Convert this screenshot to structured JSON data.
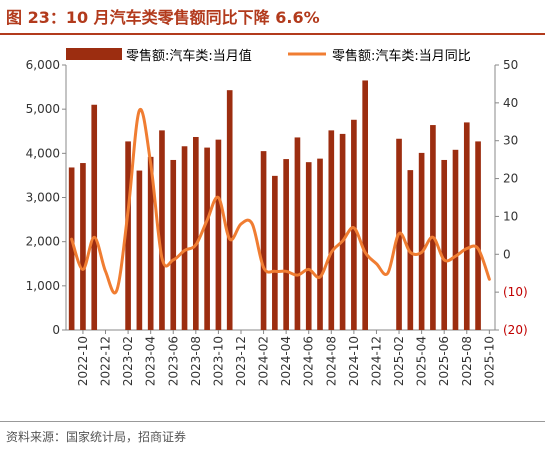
{
  "header": {
    "title": "图 23：10 月汽车类零售额同比下降 6.6%"
  },
  "footer": {
    "source": "资料来源：国家统计局，招商证券"
  },
  "colors": {
    "accent": "#b23a1c",
    "bar": "#9c2d10",
    "line": "#f07d32",
    "negative_label": "#c00000",
    "text": "#333333"
  },
  "chart_data": {
    "type": "bar",
    "categories": [
      "2022-09",
      "2022-10",
      "2022-11",
      "2022-12",
      "2023-01",
      "2023-02",
      "2023-03",
      "2023-04",
      "2023-05",
      "2023-06",
      "2023-07",
      "2023-08",
      "2023-09",
      "2023-10",
      "2023-11",
      "2023-12",
      "2024-01",
      "2024-02",
      "2024-03",
      "2024-04",
      "2024-05",
      "2024-06",
      "2024-07",
      "2024-08",
      "2024-09",
      "2024-10",
      "2024-11",
      "2024-12",
      "2025-01",
      "2025-02",
      "2025-03",
      "2025-04",
      "2025-05",
      "2025-06",
      "2025-07",
      "2025-08",
      "2025-09",
      "2025-10"
    ],
    "xtick_labels": [
      "2022-10",
      "2022-12",
      "2023-02",
      "2023-04",
      "2023-06",
      "2023-08",
      "2023-10",
      "2023-12",
      "2024-02",
      "2024-04",
      "2024-06",
      "2024-08",
      "2024-10",
      "2024-12",
      "2025-02",
      "2025-04",
      "2025-06",
      "2025-08",
      "2025-10"
    ],
    "series": [
      {
        "name": "零售额:汽车类:当月值",
        "type": "bar",
        "axis": "left",
        "values": [
          3680,
          3780,
          5100,
          null,
          null,
          4270,
          3610,
          3920,
          4520,
          3850,
          4160,
          4370,
          4130,
          4310,
          5430,
          null,
          null,
          4050,
          3490,
          3870,
          4360,
          3800,
          3880,
          4520,
          4440,
          4760,
          5650,
          null,
          null,
          4330,
          3620,
          4010,
          4640,
          3850,
          4080,
          4700,
          4270,
          null
        ],
        "y_missing_note": null
      },
      {
        "name": "零售额:汽车类:当月同比",
        "type": "line",
        "axis": "right",
        "values": [
          4.0,
          -4.0,
          4.5,
          -4.5,
          -9.5,
          11.5,
          38.0,
          24.0,
          -1.0,
          -1.5,
          1.0,
          2.5,
          9.0,
          15.0,
          4.0,
          8.0,
          8.0,
          -3.5,
          -4.5,
          -4.5,
          -5.5,
          -4.0,
          -6.0,
          0.5,
          3.5,
          7.0,
          0.5,
          -2.5,
          -5.0,
          5.5,
          0.5,
          0.5,
          4.5,
          -1.5,
          -0.5,
          1.5,
          1.5,
          -6.6
        ]
      }
    ],
    "y_left": {
      "ticks": [
        "0",
        "1,000",
        "2,000",
        "3,000",
        "4,000",
        "5,000",
        "6,000"
      ],
      "min": 0,
      "max": 6000
    },
    "y_right": {
      "ticks": [
        "(20)",
        "(10)",
        "0",
        "10",
        "20",
        "30",
        "40",
        "50"
      ],
      "min": -20,
      "max": 50
    },
    "legend_position": "top",
    "grid": false
  }
}
